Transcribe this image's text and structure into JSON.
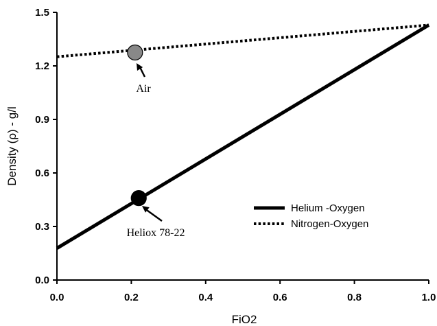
{
  "chart_data": {
    "type": "line",
    "title": "",
    "xlabel": "FiO2",
    "ylabel": "Density (ρ) - g/l",
    "xlim": [
      0.0,
      1.0
    ],
    "ylim": [
      0.0,
      1.5
    ],
    "x_ticks": [
      "0.0",
      "0.2",
      "0.4",
      "0.6",
      "0.8",
      "1.0"
    ],
    "y_ticks": [
      "0.0",
      "0.3",
      "0.6",
      "0.9",
      "1.2",
      "1.5"
    ],
    "grid": false,
    "legend_position": "lower-right",
    "series": [
      {
        "name": "Helium -Oxygen",
        "style": "solid",
        "color": "#000000",
        "x": [
          0.0,
          1.0
        ],
        "y": [
          0.178,
          1.429
        ]
      },
      {
        "name": "Nitrogen-Oxygen",
        "style": "dotted",
        "color": "#000000",
        "x": [
          0.0,
          1.0
        ],
        "y": [
          1.251,
          1.429
        ]
      }
    ],
    "points": [
      {
        "label": "Air",
        "x": 0.21,
        "y": 1.275,
        "color": "#888888"
      },
      {
        "label": "Heliox 78-22",
        "x": 0.22,
        "y": 0.459,
        "color": "#000000"
      }
    ]
  }
}
